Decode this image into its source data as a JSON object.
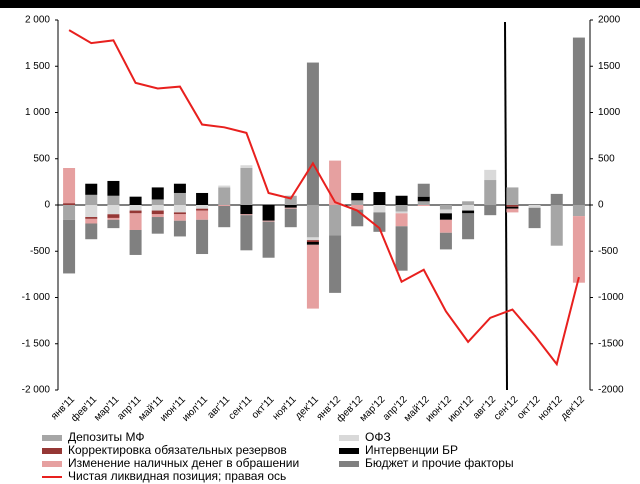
{
  "chart_data": {
    "type": "bar",
    "stacked": true,
    "categories": [
      "янв'11",
      "фев'11",
      "мар'11",
      "апр'11",
      "май'11",
      "июн'11",
      "июл'11",
      "авг'11",
      "сен'11",
      "окт'11",
      "ноя'11",
      "дек'11",
      "янв'12",
      "фев'12",
      "мар'12",
      "апр'12",
      "май'12",
      "июн'12",
      "июл'12",
      "авг'12",
      "сен'12",
      "окт'12",
      "ноя'12",
      "дек'12"
    ],
    "series": [
      {
        "name": "Депозиты МФ",
        "color": "#a6a6a6",
        "values": [
          -160,
          110,
          100,
          0,
          60,
          130,
          0,
          190,
          400,
          0,
          100,
          -350,
          -330,
          50,
          0,
          -70,
          40,
          -50,
          40,
          270,
          190,
          0,
          -440,
          -120
        ]
      },
      {
        "name": "ОФЗ",
        "color": "#d9d9d9",
        "values": [
          0,
          -130,
          -100,
          -60,
          -60,
          -80,
          -40,
          20,
          30,
          0,
          0,
          -30,
          0,
          0,
          -80,
          -20,
          0,
          -40,
          -60,
          110,
          0,
          -30,
          0,
          0
        ]
      },
      {
        "name": "Корректировка обязательных резервов",
        "color": "#953735",
        "values": [
          20,
          -20,
          -40,
          -30,
          -40,
          -20,
          -20,
          0,
          0,
          0,
          0,
          -20,
          0,
          0,
          0,
          0,
          0,
          0,
          0,
          0,
          -20,
          0,
          0,
          0
        ]
      },
      {
        "name": "Интервенции БР",
        "color": "#000000",
        "values": [
          0,
          120,
          160,
          90,
          130,
          100,
          130,
          0,
          -100,
          -170,
          -30,
          -30,
          0,
          80,
          140,
          100,
          50,
          -70,
          -30,
          0,
          -20,
          0,
          0,
          0
        ]
      },
      {
        "name": "Изменение наличных денег в обрашении",
        "color": "#e6a0a0",
        "values": [
          380,
          -50,
          -20,
          -180,
          -30,
          -70,
          -100,
          -10,
          -10,
          -10,
          -10,
          -690,
          480,
          -50,
          0,
          -140,
          -10,
          -140,
          0,
          0,
          -40,
          0,
          0,
          -720
        ]
      },
      {
        "name": "Бюджет и прочие факторы",
        "color": "#808080",
        "values": [
          -580,
          -170,
          -90,
          -270,
          -180,
          -170,
          -370,
          -230,
          -380,
          -390,
          -200,
          1540,
          -620,
          -180,
          -210,
          -480,
          140,
          -180,
          -280,
          -110,
          0,
          -220,
          120,
          1810
        ]
      },
      {
        "name": "Чистая ликвидная позиция; правая ось",
        "color": "#e8201e",
        "type": "line",
        "axis": "y2",
        "values": [
          1890,
          1750,
          1780,
          1320,
          1260,
          1280,
          870,
          840,
          780,
          130,
          70,
          450,
          30,
          -60,
          -250,
          -830,
          -700,
          -1150,
          -1480,
          -1220,
          -1130,
          -1410,
          -1720,
          -780
        ]
      }
    ],
    "ylim": [
      -2000,
      2000
    ],
    "yticks": [
      {
        "value": 2000,
        "label": "2 000"
      },
      {
        "value": 1500,
        "label": "1 500"
      },
      {
        "value": 1000,
        "label": "1 000"
      },
      500,
      0,
      -500,
      {
        "value": -1000,
        "label": "-1 000"
      },
      {
        "value": -1500,
        "label": "-1 500"
      },
      {
        "value": -2000,
        "label": "-2 000"
      }
    ],
    "y2lim": [
      -2000,
      2000
    ],
    "y2ticks": [
      2000,
      1500,
      1000,
      500,
      0,
      -500,
      -1000,
      -1500,
      -2000
    ],
    "grid": false
  }
}
